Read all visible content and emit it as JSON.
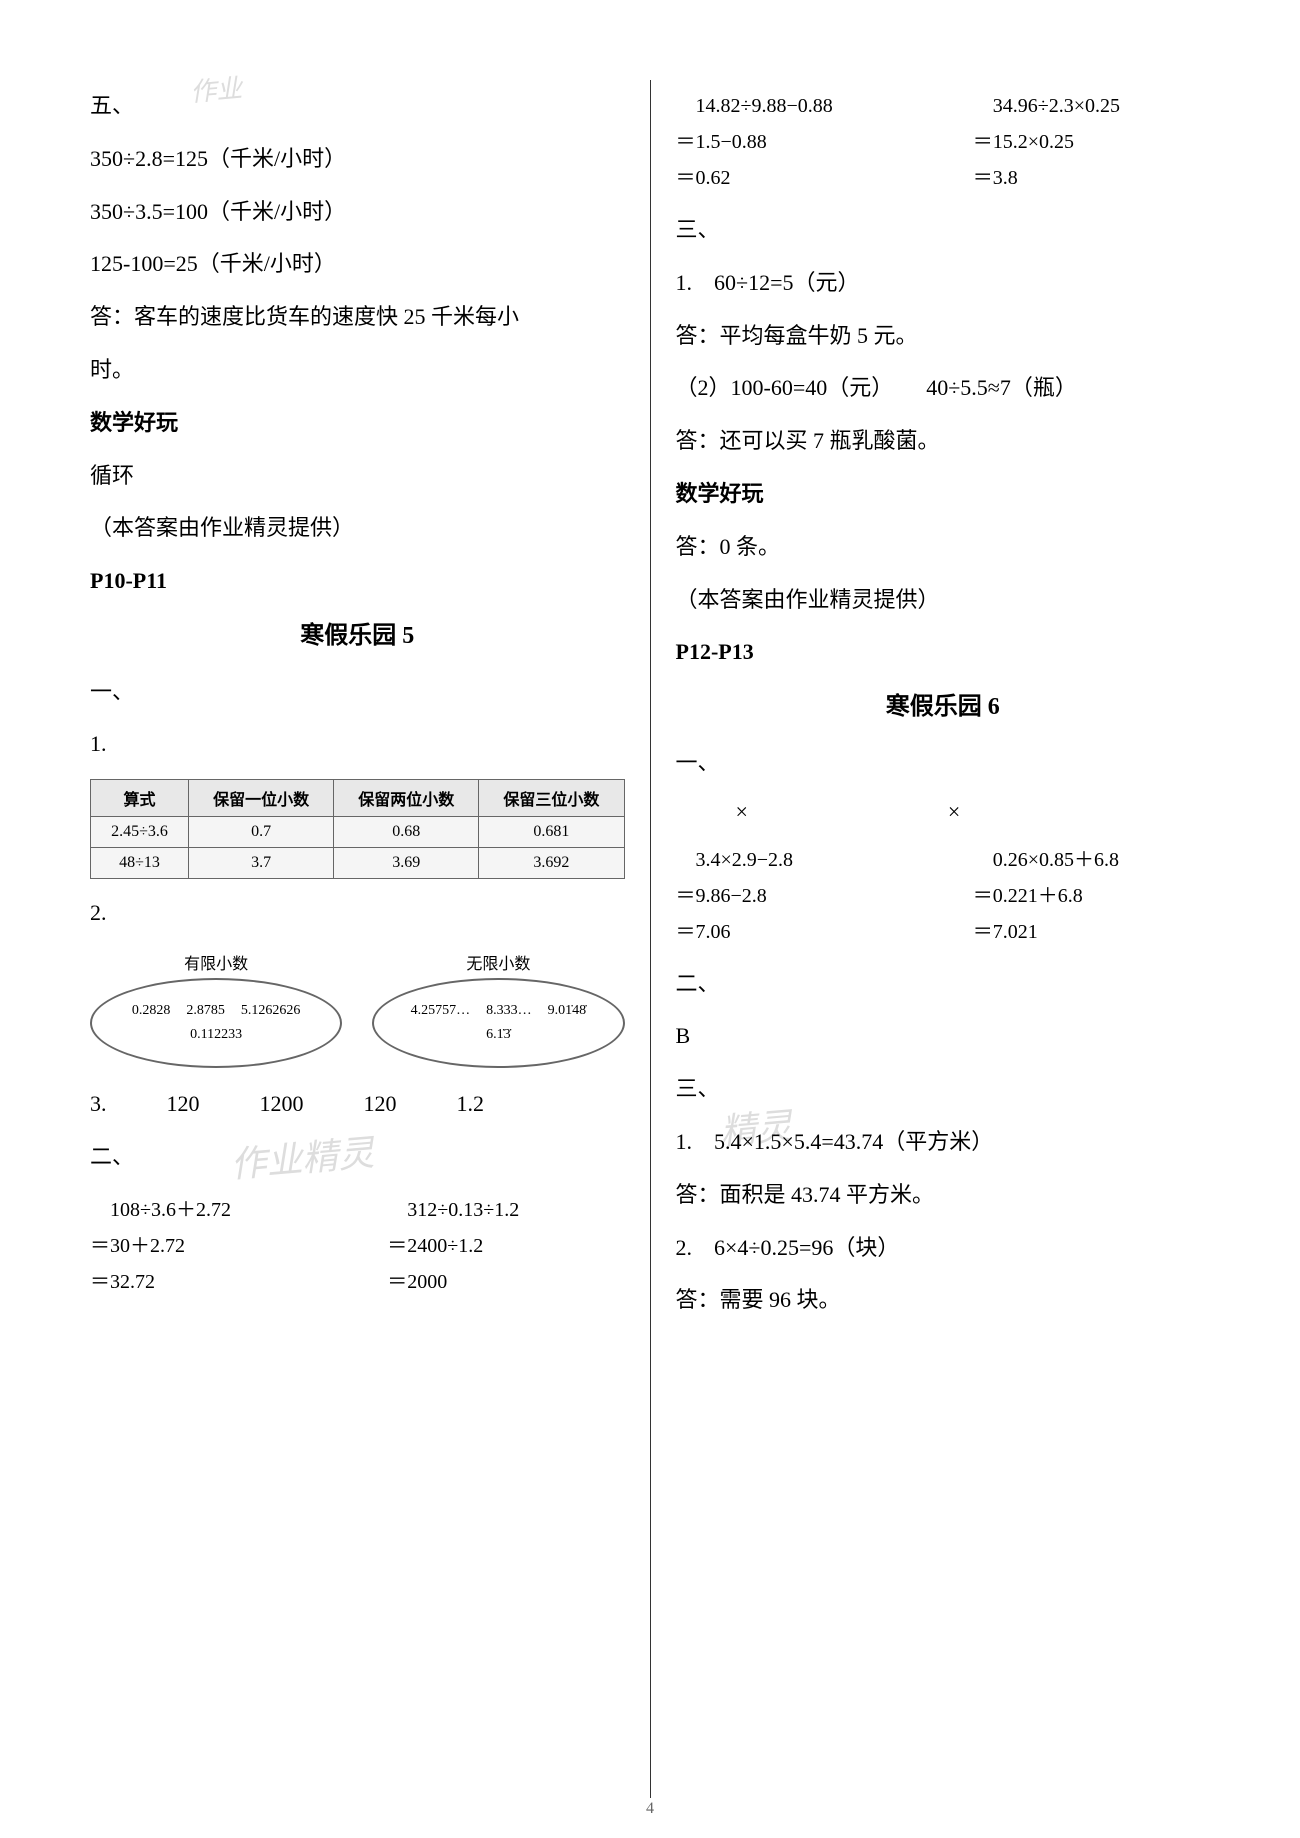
{
  "left": {
    "sec5_label": "五、",
    "l1": "350÷2.8=125（千米/小时）",
    "l2": "350÷3.5=100（千米/小时）",
    "l3": "125-100=25（千米/小时）",
    "l4": "答：客车的速度比货车的速度快 25 千米每小",
    "l5": "时。",
    "fun_title": "数学好玩",
    "fun_ans": "循环",
    "credit": "（本答案由作业精灵提供）",
    "pages": "P10-P11",
    "title5": "寒假乐园 5",
    "sec1_label": "一、",
    "q1_label": "1.",
    "table": {
      "headers": [
        "算式",
        "保留一位小数",
        "保留两位小数",
        "保留三位小数"
      ],
      "rows": [
        [
          "2.45÷3.6",
          "0.7",
          "0.68",
          "0.681"
        ],
        [
          "48÷13",
          "3.7",
          "3.69",
          "3.692"
        ]
      ]
    },
    "q2_label": "2.",
    "oval_left_label": "有限小数",
    "oval_right_label": "无限小数",
    "oval_left_nums": [
      "0.2828",
      "2.8785",
      "5.1262626",
      "0.112233"
    ],
    "oval_right_nums": [
      "4.25757…",
      "8.333…",
      "9.01̇48̇",
      "6.1̇3̇"
    ],
    "q3_label": "3.",
    "q3_vals": [
      "120",
      "1200",
      "120",
      "1.2"
    ],
    "sec2_label": "二、",
    "calc1": {
      "r1": "　108÷3.6＋2.72",
      "r2": "＝30＋2.72",
      "r3": "＝32.72"
    },
    "calc2": {
      "r1": "　312÷0.13÷1.2",
      "r2": "＝2400÷1.2",
      "r3": "＝2000"
    }
  },
  "right": {
    "calc1": {
      "r1": "　14.82÷9.88−0.88",
      "r2": "＝1.5−0.88",
      "r3": "＝0.62"
    },
    "calc2": {
      "r1": "　34.96÷2.3×0.25",
      "r2": "＝15.2×0.25",
      "r3": "＝3.8"
    },
    "sec3_label": "三、",
    "q1": "1.　60÷12=5（元）",
    "a1": "答：平均每盒牛奶 5 元。",
    "q2": "（2）100-60=40（元）　　40÷5.5≈7（瓶）",
    "a2": "答：还可以买 7 瓶乳酸菌。",
    "fun_title": "数学好玩",
    "fun_ans": "答：0 条。",
    "credit": "（本答案由作业精灵提供）",
    "pages": "P12-P13",
    "title6": "寒假乐园 6",
    "sec1_label": "一、",
    "judge1": "×",
    "judge2": "×",
    "calc3": {
      "r1": "　3.4×2.9−2.8",
      "r2": "＝9.86−2.8",
      "r3": "＝7.06"
    },
    "calc4": {
      "r1": "　0.26×0.85＋6.8",
      "r2": "＝0.221＋6.8",
      "r3": "＝7.021"
    },
    "sec2_label": "二、",
    "sec2_ans": "B",
    "sec3_label2": "三、",
    "q3_1": "1.　5.4×1.5×5.4=43.74（平方米）",
    "a3_1": "答：面积是 43.74 平方米。",
    "q3_2": "2.　6×4÷0.25=96（块）",
    "a3_2": "答：需要 96 块。"
  },
  "page_num": "4",
  "watermarks": {
    "wm1": "作业",
    "wm2": "作业精灵",
    "wm3": "作业精灵",
    "wm4": "精灵"
  }
}
